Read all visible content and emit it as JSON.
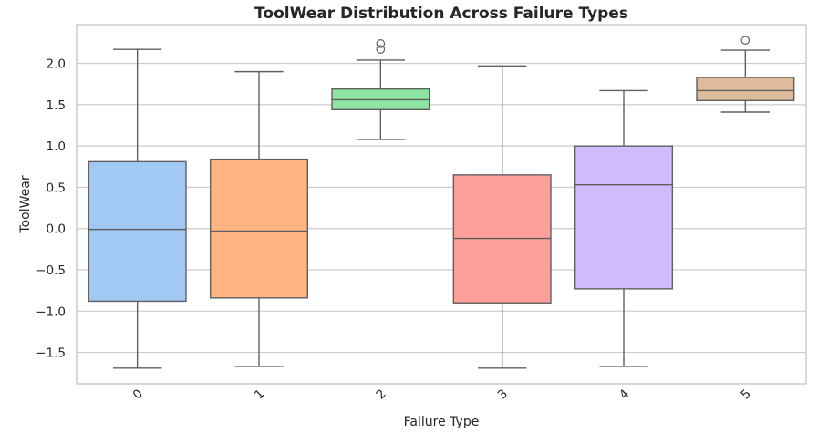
{
  "chart_data": {
    "type": "boxplot",
    "title": "ToolWear Distribution Across Failure Types",
    "xlabel": "Failure Type",
    "ylabel": "ToolWear",
    "categories": [
      "0",
      "1",
      "2",
      "3",
      "4",
      "5"
    ],
    "ylim": [
      -1.88,
      2.47
    ],
    "yticks": [
      -1.5,
      -1.0,
      -0.5,
      0.0,
      0.5,
      1.0,
      1.5,
      2.0
    ],
    "ytick_labels": [
      "−1.5",
      "−1.0",
      "−0.5",
      "0.0",
      "0.5",
      "1.0",
      "1.5",
      "2.0"
    ],
    "grid": true,
    "xtick_rotation": -45,
    "boxes": [
      {
        "category": "0",
        "whislo": -1.69,
        "q1": -0.88,
        "med": -0.01,
        "q3": 0.81,
        "whishi": 2.17,
        "fliers": [],
        "color": "#a1c9f4"
      },
      {
        "category": "1",
        "whislo": -1.67,
        "q1": -0.84,
        "med": -0.03,
        "q3": 0.84,
        "whishi": 1.9,
        "fliers": [],
        "color": "#ffb482"
      },
      {
        "category": "2",
        "whislo": 1.08,
        "q1": 1.44,
        "med": 1.56,
        "q3": 1.69,
        "whishi": 2.04,
        "fliers": [
          2.17,
          2.24
        ],
        "color": "#8de5a1"
      },
      {
        "category": "3",
        "whislo": -1.69,
        "q1": -0.9,
        "med": -0.12,
        "q3": 0.65,
        "whishi": 1.97,
        "fliers": [],
        "color": "#ff9f9b"
      },
      {
        "category": "4",
        "whislo": -1.67,
        "q1": -0.73,
        "med": 0.53,
        "q3": 1.0,
        "whishi": 1.67,
        "fliers": [],
        "color": "#d0bbff"
      },
      {
        "category": "5",
        "whislo": 1.41,
        "q1": 1.55,
        "med": 1.67,
        "q3": 1.83,
        "whishi": 2.16,
        "fliers": [
          2.28
        ],
        "color": "#debb9b"
      }
    ]
  }
}
